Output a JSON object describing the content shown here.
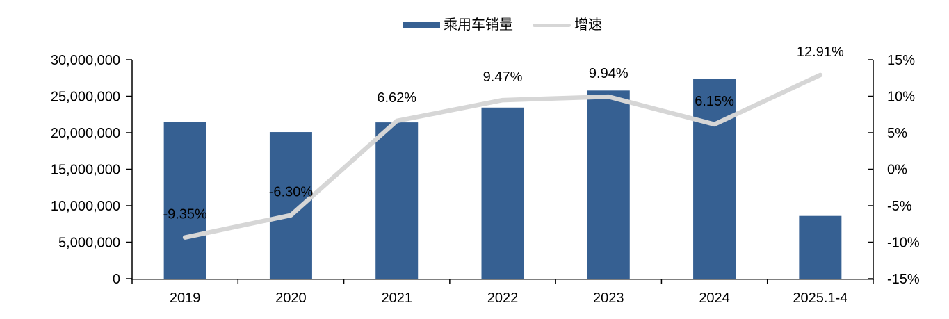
{
  "colors": {
    "bar": "#366092",
    "line": "#D6D6D6",
    "axis": "#000000",
    "text": "#000000"
  },
  "chart_data": {
    "type": "bar",
    "title": "",
    "categories": [
      "2019",
      "2020",
      "2021",
      "2022",
      "2023",
      "2024",
      "2025.1-4"
    ],
    "series": [
      {
        "name": "乘用车销量",
        "chart": "bar",
        "axis": "left",
        "color": "#366092",
        "values": [
          21440000,
          20090000,
          21420000,
          23450000,
          25780000,
          27360000,
          8600000
        ]
      },
      {
        "name": "增速",
        "chart": "line",
        "axis": "right",
        "color": "#D6D6D6",
        "values": [
          -9.35,
          -6.3,
          6.62,
          9.47,
          9.94,
          6.15,
          12.91
        ],
        "point_labels": [
          "-9.35%",
          "-6.30%",
          "6.62%",
          "9.47%",
          "9.94%",
          "6.15%",
          "12.91%"
        ]
      }
    ],
    "left_axis": {
      "min": 0,
      "max": 30000000,
      "step": 5000000,
      "tick_labels": [
        "0",
        "5,000,000",
        "10,000,000",
        "15,000,000",
        "20,000,000",
        "25,000,000",
        "30,000,000"
      ]
    },
    "right_axis": {
      "min": -15,
      "max": 15,
      "step": 5,
      "tick_labels": [
        "-15%",
        "-10%",
        "-5%",
        "0%",
        "5%",
        "10%",
        "15%"
      ]
    },
    "grid": false,
    "legend_position": "top"
  }
}
